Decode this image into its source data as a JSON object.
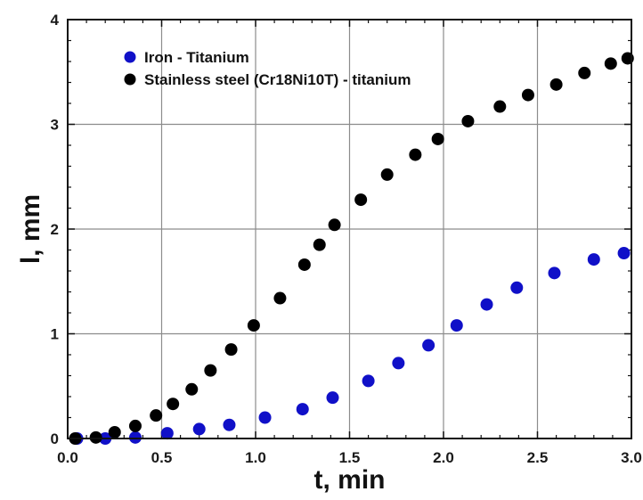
{
  "chart_data": {
    "type": "scatter",
    "xlabel": "t, min",
    "ylabel": "l, mm",
    "xlim": [
      0,
      3.0
    ],
    "ylim": [
      0,
      4
    ],
    "xticks": [
      "0.0",
      "0.5",
      "1.0",
      "1.5",
      "2.0",
      "2.5",
      "3.0"
    ],
    "yticks": [
      "0",
      "1",
      "2",
      "3",
      "4"
    ],
    "grid": true,
    "legend_position": "top-left",
    "series": [
      {
        "name": "Iron - Titanium",
        "color": "#1010c8",
        "x": [
          0.05,
          0.2,
          0.36,
          0.53,
          0.7,
          0.86,
          1.05,
          1.25,
          1.41,
          1.6,
          1.76,
          1.92,
          2.07,
          2.23,
          2.39,
          2.59,
          2.8,
          2.96
        ],
        "y": [
          0.0,
          0.0,
          0.01,
          0.05,
          0.09,
          0.13,
          0.2,
          0.28,
          0.39,
          0.55,
          0.72,
          0.89,
          1.08,
          1.28,
          1.44,
          1.58,
          1.71,
          1.77
        ]
      },
      {
        "name": "Stainless steel (Cr18Ni10T) - titanium",
        "color": "#000000",
        "x": [
          0.04,
          0.15,
          0.25,
          0.36,
          0.47,
          0.56,
          0.66,
          0.76,
          0.87,
          0.99,
          1.13,
          1.26,
          1.34,
          1.42,
          1.56,
          1.7,
          1.85,
          1.97,
          2.13,
          2.3,
          2.45,
          2.6,
          2.75,
          2.89,
          2.98
        ],
        "y": [
          0.0,
          0.01,
          0.06,
          0.12,
          0.22,
          0.33,
          0.47,
          0.65,
          0.85,
          1.08,
          1.34,
          1.66,
          1.85,
          2.04,
          2.28,
          2.52,
          2.71,
          2.86,
          3.03,
          3.17,
          3.28,
          3.38,
          3.49,
          3.58,
          3.63
        ]
      }
    ]
  }
}
